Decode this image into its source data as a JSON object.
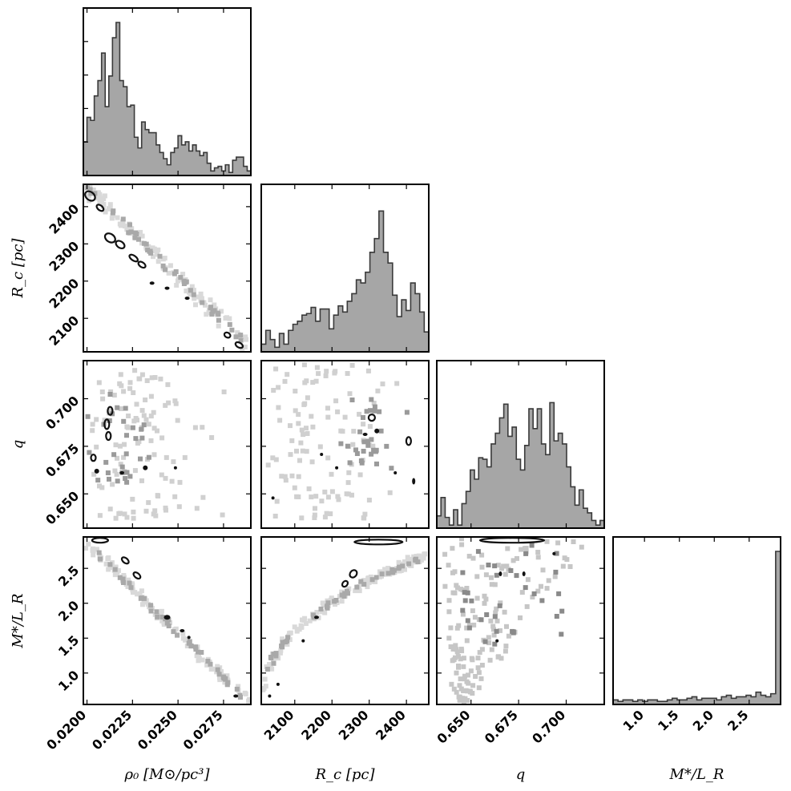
{
  "chart_data": {
    "type": "corner",
    "parameters": [
      {
        "key": "rho0",
        "label": "ρ₀ [M⊙/pc³]",
        "range": [
          0.0198,
          0.029
        ],
        "ticks": [
          0.02,
          0.0225,
          0.025,
          0.0275
        ],
        "tick_labels": [
          "0.0200",
          "0.0225",
          "0.0250",
          "0.0275"
        ]
      },
      {
        "key": "Rc",
        "label": "R_c [pc]",
        "range": [
          2010,
          2460
        ],
        "ticks": [
          2100,
          2200,
          2300,
          2400
        ],
        "tick_labels": [
          "2100",
          "2200",
          "2300",
          "2400"
        ]
      },
      {
        "key": "q",
        "label": "q",
        "range": [
          0.632,
          0.72
        ],
        "ticks": [
          0.65,
          0.675,
          0.7
        ],
        "tick_labels": [
          "0.650",
          "0.675",
          "0.700"
        ]
      },
      {
        "key": "ML",
        "label": "M*/L_R",
        "range": [
          0.55,
          2.95
        ],
        "ticks": [
          1.0,
          1.5,
          2.0,
          2.5
        ],
        "tick_labels": [
          "1.0",
          "1.5",
          "2.0",
          "2.5"
        ]
      }
    ],
    "axis_labels": {
      "rho0": "ρ₀ [M⊙/pc³]",
      "Rc": "R_c [pc]",
      "q": "q",
      "ML": "M*/L_R"
    },
    "histograms": {
      "rho0": [
        0.22,
        0.38,
        0.36,
        0.52,
        0.62,
        0.8,
        0.45,
        0.65,
        0.9,
        1.0,
        0.62,
        0.58,
        0.45,
        0.46,
        0.25,
        0.18,
        0.35,
        0.3,
        0.28,
        0.28,
        0.2,
        0.15,
        0.11,
        0.07,
        0.15,
        0.18,
        0.26,
        0.2,
        0.22,
        0.16,
        0.2,
        0.16,
        0.13,
        0.15,
        0.08,
        0.03,
        0.05,
        0.06,
        0.03,
        0.07,
        0.02,
        0.1,
        0.12,
        0.12,
        0.06,
        0.03
      ],
      "Rc": [
        0.05,
        0.14,
        0.08,
        0.03,
        0.12,
        0.05,
        0.14,
        0.18,
        0.2,
        0.24,
        0.25,
        0.29,
        0.2,
        0.28,
        0.28,
        0.15,
        0.24,
        0.3,
        0.26,
        0.33,
        0.38,
        0.47,
        0.45,
        0.52,
        0.65,
        0.74,
        0.92,
        0.65,
        0.58,
        0.37,
        0.23,
        0.34,
        0.27,
        0.45,
        0.38,
        0.26,
        0.13
      ],
      "q": [
        0.08,
        0.2,
        0.07,
        0.02,
        0.12,
        0.02,
        0.16,
        0.24,
        0.38,
        0.32,
        0.46,
        0.45,
        0.4,
        0.55,
        0.62,
        0.72,
        0.81,
        0.6,
        0.66,
        0.45,
        0.38,
        0.54,
        0.78,
        0.65,
        0.78,
        0.55,
        0.48,
        0.82,
        0.57,
        0.62,
        0.55,
        0.4,
        0.27,
        0.15,
        0.25,
        0.13,
        0.1,
        0.05,
        0.02,
        0.05
      ],
      "ML": [
        0.03,
        0.02,
        0.03,
        0.03,
        0.02,
        0.03,
        0.02,
        0.03,
        0.03,
        0.02,
        0.02,
        0.03,
        0.04,
        0.03,
        0.03,
        0.04,
        0.05,
        0.03,
        0.04,
        0.04,
        0.04,
        0.03,
        0.05,
        0.06,
        0.04,
        0.05,
        0.05,
        0.06,
        0.05,
        0.08,
        0.06,
        0.05,
        0.07,
        1.0
      ]
    }
  }
}
